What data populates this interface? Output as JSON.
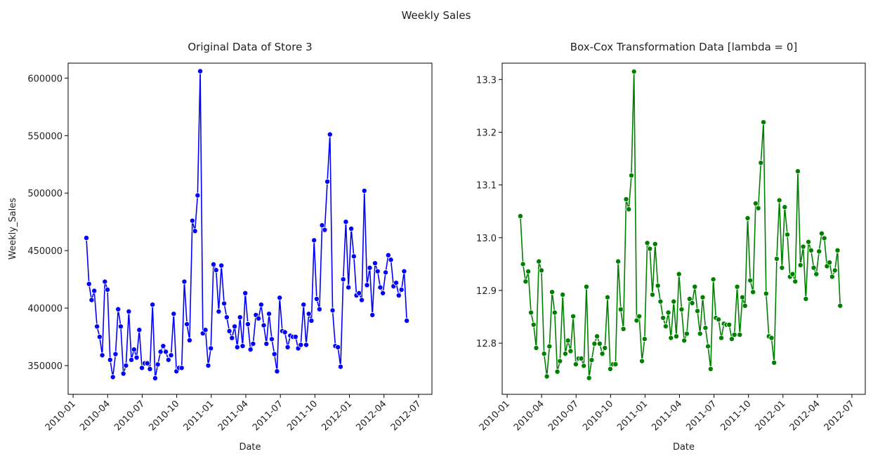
{
  "title": "Weekly Sales",
  "chart_data": [
    {
      "type": "line",
      "title": "Original Data of Store 3",
      "x_label": "Date",
      "y_label": "Weekly_Sales",
      "color": "#0000ff",
      "xlim": [
        2009.964,
        2012.597
      ],
      "xticks": [
        {
          "value": 2010.0,
          "label": "2010-01"
        },
        {
          "value": 2010.25,
          "label": "2010-04"
        },
        {
          "value": 2010.5,
          "label": "2010-07"
        },
        {
          "value": 2010.75,
          "label": "2010-10"
        },
        {
          "value": 2011.0,
          "label": "2011-01"
        },
        {
          "value": 2011.25,
          "label": "2011-04"
        },
        {
          "value": 2011.5,
          "label": "2011-07"
        },
        {
          "value": 2011.75,
          "label": "2011-10"
        },
        {
          "value": 2012.0,
          "label": "2012-01"
        },
        {
          "value": 2012.25,
          "label": "2012-04"
        },
        {
          "value": 2012.5,
          "label": "2012-07"
        }
      ],
      "ylim": [
        325000,
        613000
      ],
      "yticks": [
        350000,
        400000,
        450000,
        500000,
        550000,
        600000
      ],
      "x": [
        2010.096,
        2010.115,
        2010.134,
        2010.153,
        2010.173,
        2010.192,
        2010.211,
        2010.23,
        2010.249,
        2010.268,
        2010.288,
        2010.307,
        2010.326,
        2010.345,
        2010.364,
        2010.383,
        2010.403,
        2010.422,
        2010.441,
        2010.46,
        2010.479,
        2010.498,
        2010.518,
        2010.537,
        2010.556,
        2010.575,
        2010.594,
        2010.613,
        2010.633,
        2010.652,
        2010.671,
        2010.69,
        2010.709,
        2010.728,
        2010.748,
        2010.767,
        2010.786,
        2010.805,
        2010.824,
        2010.843,
        2010.863,
        2010.882,
        2010.901,
        2010.92,
        2010.939,
        2010.958,
        2010.978,
        2010.997,
        2011.016,
        2011.035,
        2011.054,
        2011.073,
        2011.093,
        2011.112,
        2011.131,
        2011.15,
        2011.169,
        2011.188,
        2011.208,
        2011.227,
        2011.246,
        2011.265,
        2011.284,
        2011.303,
        2011.323,
        2011.342,
        2011.361,
        2011.38,
        2011.399,
        2011.418,
        2011.438,
        2011.457,
        2011.476,
        2011.495,
        2011.514,
        2011.533,
        2011.553,
        2011.572,
        2011.591,
        2011.61,
        2011.629,
        2011.648,
        2011.668,
        2011.687,
        2011.706,
        2011.725,
        2011.744,
        2011.763,
        2011.783,
        2011.802,
        2011.821,
        2011.84,
        2011.859,
        2011.878,
        2011.898,
        2011.917,
        2011.936,
        2011.955,
        2011.974,
        2011.993,
        2012.013,
        2012.032,
        2012.051,
        2012.07,
        2012.089,
        2012.108,
        2012.127,
        2012.147,
        2012.166,
        2012.185,
        2012.204,
        2012.223,
        2012.242,
        2012.262,
        2012.281,
        2012.3,
        2012.319,
        2012.338,
        2012.357,
        2012.377,
        2012.396,
        2012.415
      ],
      "values": [
        461000,
        421000,
        407000,
        415000,
        384000,
        375000,
        359000,
        423000,
        416000,
        355000,
        340000,
        360000,
        399000,
        384000,
        343000,
        350000,
        397000,
        355000,
        364000,
        357000,
        381000,
        348000,
        352000,
        352000,
        347000,
        403000,
        339000,
        351000,
        362000,
        367000,
        362000,
        355000,
        359000,
        395000,
        345000,
        348000,
        348000,
        423000,
        386000,
        372000,
        476000,
        467000,
        498000,
        606000,
        378000,
        381000,
        350000,
        365000,
        438000,
        433000,
        397000,
        437000,
        404000,
        392000,
        380000,
        374000,
        384000,
        366000,
        392000,
        367000,
        413000,
        386000,
        364000,
        369000,
        394000,
        391000,
        403000,
        385000,
        369000,
        395000,
        373000,
        360000,
        345000,
        409000,
        380000,
        379000,
        366000,
        376000,
        375000,
        375000,
        365000,
        368000,
        403000,
        368000,
        395000,
        389000,
        459000,
        408000,
        399000,
        472000,
        468000,
        510000,
        551000,
        398000,
        367000,
        366000,
        349000,
        425000,
        475000,
        418000,
        469000,
        445000,
        411000,
        413000,
        407000,
        502000,
        420000,
        435000,
        394000,
        439000,
        432000,
        418000,
        413000,
        431000,
        446000,
        442000,
        419000,
        422000,
        411000,
        416000,
        432000,
        389000
      ]
    },
    {
      "type": "line",
      "title": "Box-Cox Transformation Data [lambda = 0]",
      "x_label": "Date",
      "color": "#008000",
      "xlim": [
        2009.964,
        2012.597
      ],
      "xticks": [
        {
          "value": 2010.0,
          "label": "2010-01"
        },
        {
          "value": 2010.25,
          "label": "2010-04"
        },
        {
          "value": 2010.5,
          "label": "2010-07"
        },
        {
          "value": 2010.75,
          "label": "2010-10"
        },
        {
          "value": 2011.0,
          "label": "2011-01"
        },
        {
          "value": 2011.25,
          "label": "2011-04"
        },
        {
          "value": 2011.5,
          "label": "2011-07"
        },
        {
          "value": 2011.75,
          "label": "2011-10"
        },
        {
          "value": 2012.0,
          "label": "2012-01"
        },
        {
          "value": 2012.25,
          "label": "2012-04"
        },
        {
          "value": 2012.5,
          "label": "2012-07"
        }
      ],
      "ylim": [
        12.703,
        13.331
      ],
      "yticks": [
        12.8,
        12.9,
        {
          "value": 13,
          "label": "13.0"
        },
        13.1,
        13.2,
        13.3
      ],
      "x": [
        2010.096,
        2010.115,
        2010.134,
        2010.153,
        2010.173,
        2010.192,
        2010.211,
        2010.23,
        2010.249,
        2010.268,
        2010.288,
        2010.307,
        2010.326,
        2010.345,
        2010.364,
        2010.383,
        2010.403,
        2010.422,
        2010.441,
        2010.46,
        2010.479,
        2010.498,
        2010.518,
        2010.537,
        2010.556,
        2010.575,
        2010.594,
        2010.613,
        2010.633,
        2010.652,
        2010.671,
        2010.69,
        2010.709,
        2010.728,
        2010.748,
        2010.767,
        2010.786,
        2010.805,
        2010.824,
        2010.843,
        2010.863,
        2010.882,
        2010.901,
        2010.92,
        2010.939,
        2010.958,
        2010.978,
        2010.997,
        2011.016,
        2011.035,
        2011.054,
        2011.073,
        2011.093,
        2011.112,
        2011.131,
        2011.15,
        2011.169,
        2011.188,
        2011.208,
        2011.227,
        2011.246,
        2011.265,
        2011.284,
        2011.303,
        2011.323,
        2011.342,
        2011.361,
        2011.38,
        2011.399,
        2011.418,
        2011.438,
        2011.457,
        2011.476,
        2011.495,
        2011.514,
        2011.533,
        2011.553,
        2011.572,
        2011.591,
        2011.61,
        2011.629,
        2011.648,
        2011.668,
        2011.687,
        2011.706,
        2011.725,
        2011.744,
        2011.763,
        2011.783,
        2011.802,
        2011.821,
        2011.84,
        2011.859,
        2011.878,
        2011.898,
        2011.917,
        2011.936,
        2011.955,
        2011.974,
        2011.993,
        2012.013,
        2012.032,
        2012.051,
        2012.07,
        2012.089,
        2012.108,
        2012.127,
        2012.147,
        2012.166,
        2012.185,
        2012.204,
        2012.223,
        2012.242,
        2012.262,
        2012.281,
        2012.3,
        2012.319,
        2012.338,
        2012.357,
        2012.377,
        2012.396,
        2012.415
      ],
      "values": [
        13.041,
        12.95,
        12.917,
        12.936,
        12.858,
        12.835,
        12.791,
        12.955,
        12.938,
        12.78,
        12.737,
        12.794,
        12.897,
        12.858,
        12.746,
        12.766,
        12.892,
        12.78,
        12.805,
        12.785,
        12.851,
        12.76,
        12.771,
        12.771,
        12.757,
        12.907,
        12.734,
        12.768,
        12.799,
        12.813,
        12.799,
        12.78,
        12.791,
        12.887,
        12.751,
        12.76,
        12.76,
        12.955,
        12.864,
        12.827,
        13.073,
        13.054,
        13.118,
        13.315,
        12.843,
        12.851,
        12.766,
        12.808,
        12.99,
        12.979,
        12.892,
        12.988,
        12.909,
        12.879,
        12.848,
        12.832,
        12.858,
        12.81,
        12.879,
        12.813,
        12.931,
        12.864,
        12.805,
        12.818,
        12.884,
        12.876,
        12.907,
        12.861,
        12.818,
        12.887,
        12.829,
        12.794,
        12.751,
        12.921,
        12.848,
        12.845,
        12.81,
        12.837,
        12.835,
        12.835,
        12.808,
        12.816,
        12.907,
        12.816,
        12.887,
        12.871,
        13.037,
        12.919,
        12.897,
        13.065,
        13.056,
        13.142,
        13.219,
        12.894,
        12.813,
        12.81,
        12.763,
        12.96,
        13.071,
        12.943,
        13.058,
        13.006,
        12.926,
        12.931,
        12.917,
        13.126,
        12.948,
        12.983,
        12.884,
        12.992,
        12.976,
        12.943,
        12.931,
        12.974,
        13.008,
        12.999,
        12.946,
        12.953,
        12.926,
        12.938,
        12.976,
        12.871
      ]
    }
  ]
}
